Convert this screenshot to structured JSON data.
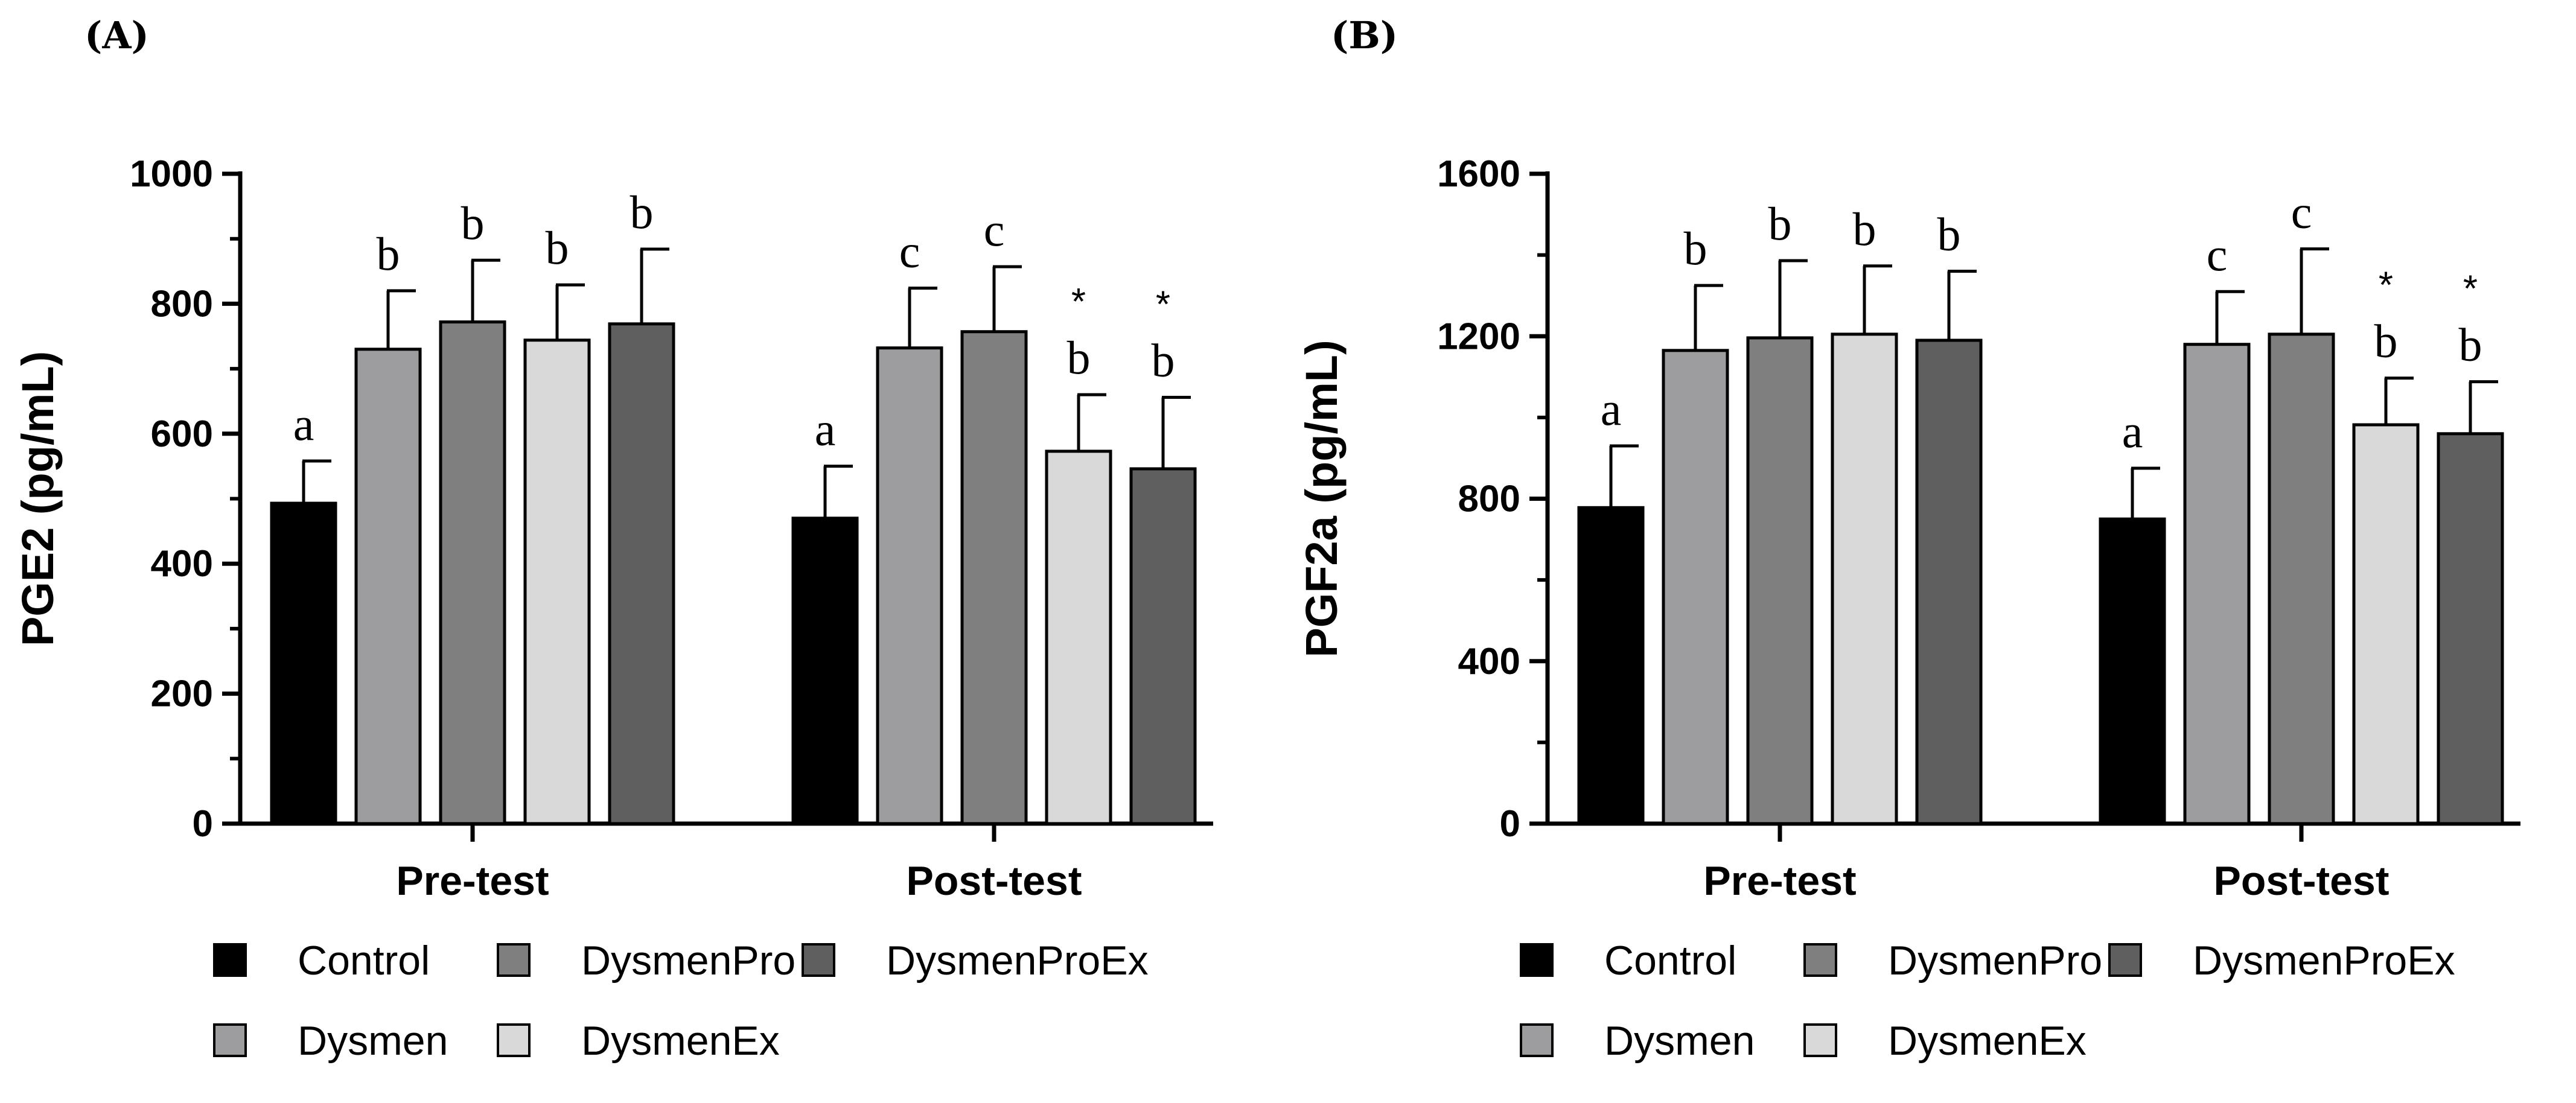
{
  "figure": {
    "groups": [
      {
        "name": "Control",
        "color": "#000000"
      },
      {
        "name": "Dysmen",
        "color": "#9d9da0"
      },
      {
        "name": "DysmenPro",
        "color": "#7f7f7f"
      },
      {
        "name": "DysmenEx",
        "color": "#d9d9d9"
      },
      {
        "name": "DysmenProEx",
        "color": "#5f5f5f"
      }
    ]
  },
  "chart_data": [
    {
      "type": "bar",
      "panel_label": "(A)",
      "title": "",
      "xlabel": "",
      "ylabel": "PGE2 (pg/mL)",
      "ylim": [
        0,
        1000
      ],
      "yticks": [
        "0",
        "200",
        "400",
        "600",
        "800",
        "1000"
      ],
      "categories": [
        "Pre-test",
        "Post-test"
      ],
      "series": [
        {
          "name": "Control",
          "values": [
            493,
            470
          ],
          "errors": [
            65,
            80
          ],
          "labels": [
            "a",
            "a"
          ]
        },
        {
          "name": "Dysmen",
          "values": [
            730,
            732
          ],
          "errors": [
            90,
            92
          ],
          "labels": [
            "b",
            "c"
          ]
        },
        {
          "name": "DysmenPro",
          "values": [
            772,
            757
          ],
          "errors": [
            95,
            100
          ],
          "labels": [
            "b",
            "c"
          ]
        },
        {
          "name": "DysmenEx",
          "values": [
            744,
            573
          ],
          "errors": [
            85,
            87
          ],
          "labels": [
            "b",
            "*b"
          ]
        },
        {
          "name": "DysmenProEx",
          "values": [
            769,
            546
          ],
          "errors": [
            115,
            110
          ],
          "labels": [
            "b",
            "*b"
          ]
        }
      ],
      "legend_position": "bottom"
    },
    {
      "type": "bar",
      "panel_label": "(B)",
      "title": "",
      "xlabel": "",
      "ylabel": "PGF2a (pg/mL)",
      "ylim": [
        0,
        1600
      ],
      "yticks": [
        "0",
        "400",
        "800",
        "1200",
        "1600"
      ],
      "categories": [
        "Pre-test",
        "Post-test"
      ],
      "series": [
        {
          "name": "Control",
          "values": [
            778,
            750
          ],
          "errors": [
            152,
            125
          ],
          "labels": [
            "a",
            "a"
          ]
        },
        {
          "name": "Dysmen",
          "values": [
            1165,
            1180
          ],
          "errors": [
            160,
            130
          ],
          "labels": [
            "b",
            "c"
          ]
        },
        {
          "name": "DysmenPro",
          "values": [
            1196,
            1205
          ],
          "errors": [
            190,
            210
          ],
          "labels": [
            "b",
            "c"
          ]
        },
        {
          "name": "DysmenEx",
          "values": [
            1205,
            982
          ],
          "errors": [
            168,
            115
          ],
          "labels": [
            "b",
            "*b"
          ]
        },
        {
          "name": "DysmenProEx",
          "values": [
            1190,
            960
          ],
          "errors": [
            170,
            128
          ],
          "labels": [
            "b",
            "*b"
          ]
        }
      ],
      "legend_position": "bottom"
    }
  ]
}
